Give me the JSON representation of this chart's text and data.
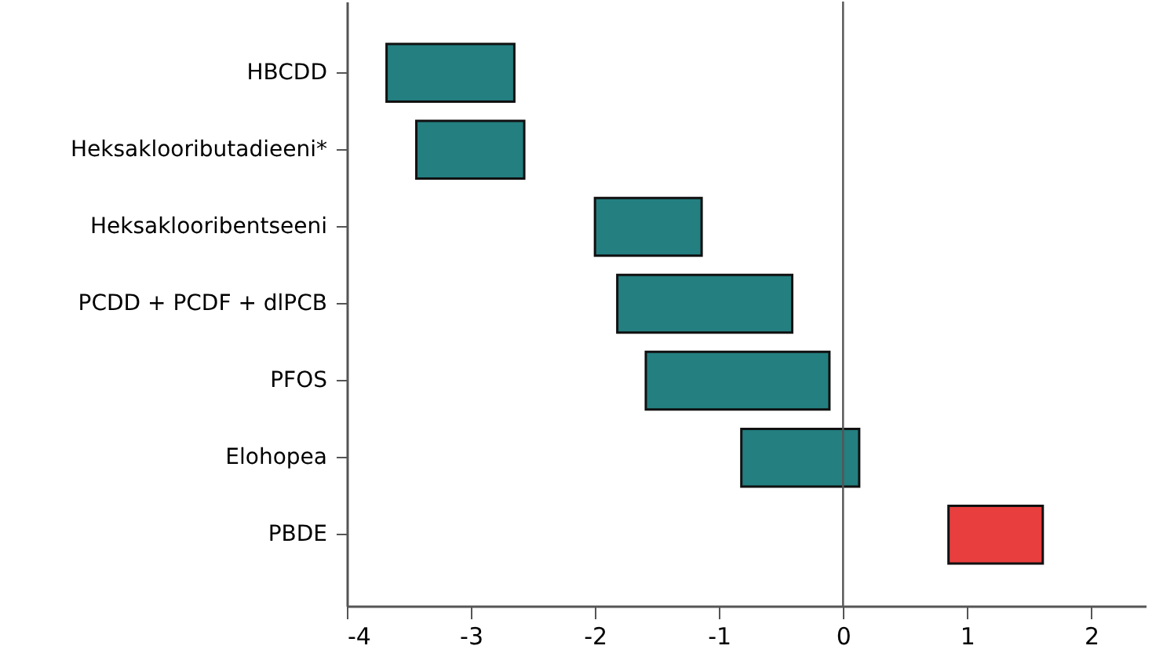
{
  "chart_data": {
    "type": "bar",
    "orientation": "horizontal",
    "categories": [
      "HBCDD",
      "Heksaklooributadieeni*",
      "Heksaklooribentseeni",
      "PCDD + PCDF + dlPCB",
      "PFOS",
      "Elohopea",
      "PBDE"
    ],
    "base": [
      -3.68,
      -3.44,
      -2.0,
      -1.82,
      -1.59,
      -0.82,
      0.85
    ],
    "values": [
      1.03,
      0.87,
      0.86,
      1.41,
      1.48,
      0.95,
      0.76
    ],
    "colors": [
      "#237f80",
      "#237f80",
      "#237f80",
      "#237f80",
      "#237f80",
      "#237f80",
      "#e83e3e"
    ],
    "xlim": [
      -4,
      2.44
    ],
    "xticks": [
      -4,
      -3,
      -2,
      -1,
      0,
      1,
      2
    ],
    "ref_lines": [
      {
        "axis": "x",
        "value": 0,
        "color": "#555555"
      }
    ]
  }
}
